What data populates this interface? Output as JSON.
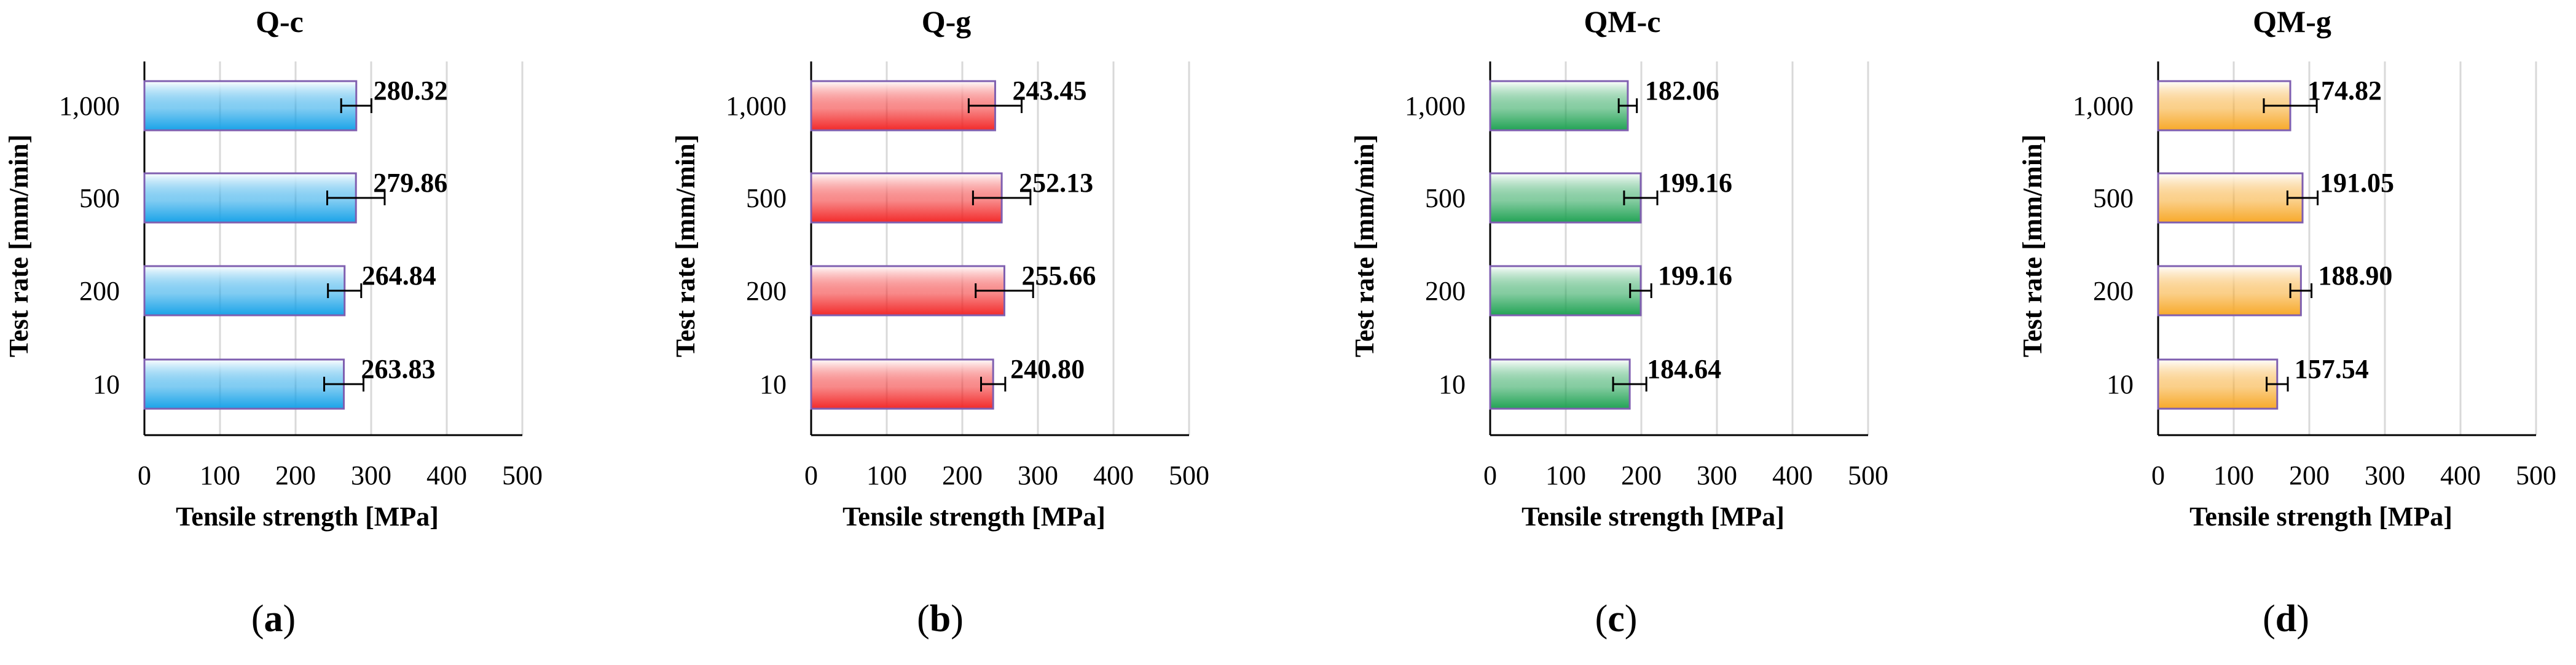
{
  "chart_data": [
    {
      "type": "bar",
      "orientation": "horizontal",
      "panel": "a",
      "title": "Q-c",
      "categories": [
        "1,000",
        "500",
        "200",
        "10"
      ],
      "values": [
        280.32,
        279.86,
        264.84,
        263.83
      ],
      "value_labels": [
        "280.32",
        "279.86",
        "264.84",
        "263.83"
      ],
      "error": [
        20,
        38,
        22,
        26
      ],
      "xlabel": "Tensile strength [MPa]",
      "ylabel": "Test rate [mm/min]",
      "xlim": [
        0,
        500
      ],
      "xticks": [
        "0",
        "100",
        "200",
        "300",
        "400",
        "500"
      ],
      "grid": "vertical",
      "color": "#1aa3e8"
    },
    {
      "type": "bar",
      "orientation": "horizontal",
      "panel": "b",
      "title": "Q-g",
      "categories": [
        "1,000",
        "500",
        "200",
        "10"
      ],
      "values": [
        243.45,
        252.13,
        255.66,
        240.8
      ],
      "value_labels": [
        "243.45",
        "252.13",
        "255.66",
        "240.80"
      ],
      "error": [
        35,
        38,
        38,
        16
      ],
      "xlabel": "Tensile strength [MPa]",
      "ylabel": "Test rate [mm/min]",
      "xlim": [
        0,
        500
      ],
      "xticks": [
        "0",
        "100",
        "200",
        "300",
        "400",
        "500"
      ],
      "grid": "vertical",
      "color": "#f22a2a"
    },
    {
      "type": "bar",
      "orientation": "horizontal",
      "panel": "c",
      "title": "QM-c",
      "categories": [
        "1,000",
        "500",
        "200",
        "10"
      ],
      "values": [
        182.06,
        199.16,
        199.16,
        184.64
      ],
      "value_labels": [
        "182.06",
        "199.16",
        "199.16",
        "184.64"
      ],
      "error": [
        12,
        22,
        14,
        22
      ],
      "xlabel": "Tensile strength [MPa]",
      "ylabel": "Test rate [mm/min]",
      "xlim": [
        0,
        500
      ],
      "xticks": [
        "0",
        "100",
        "200",
        "300",
        "400",
        "500"
      ],
      "grid": "vertical",
      "color": "#22a355"
    },
    {
      "type": "bar",
      "orientation": "horizontal",
      "panel": "d",
      "title": "QM-g",
      "categories": [
        "1,000",
        "500",
        "200",
        "10"
      ],
      "values": [
        174.82,
        191.05,
        188.9,
        157.54
      ],
      "value_labels": [
        "174.82",
        "191.05",
        "188.90",
        "157.54"
      ],
      "error": [
        35,
        20,
        14,
        14
      ],
      "xlabel": "Tensile strength [MPa]",
      "ylabel": "Test rate [mm/min]",
      "xlim": [
        0,
        500
      ],
      "xticks": [
        "0",
        "100",
        "200",
        "300",
        "400",
        "500"
      ],
      "grid": "vertical",
      "color": "#f7a92a"
    }
  ]
}
